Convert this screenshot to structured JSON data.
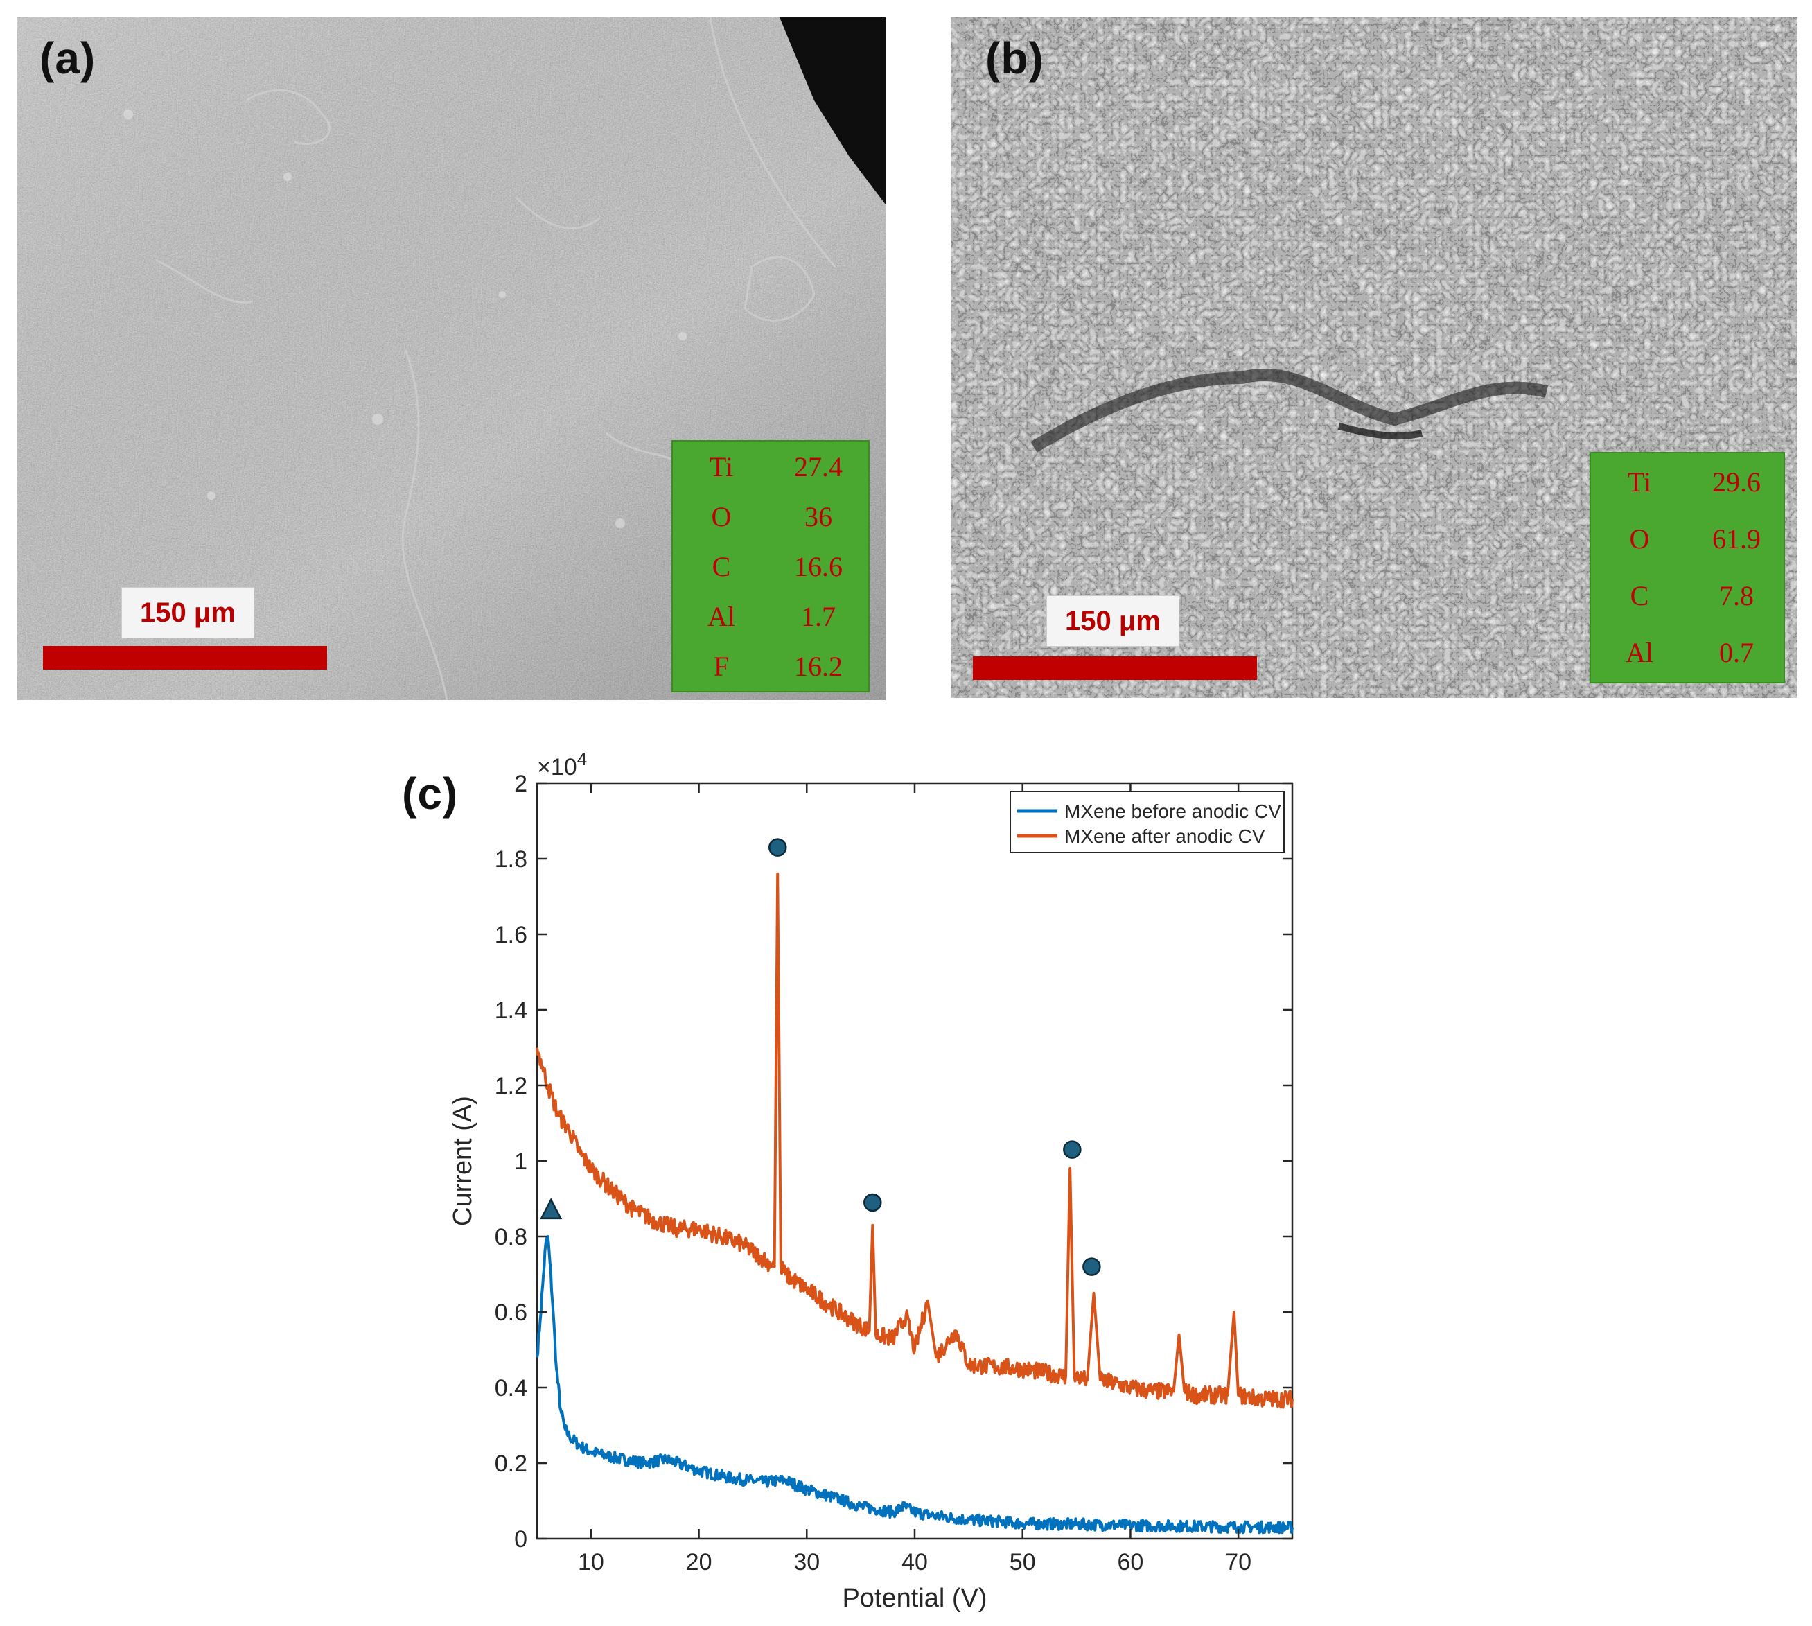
{
  "panels": {
    "a": {
      "label": "(a)",
      "scale_text": "150 μm",
      "eds": [
        {
          "element": "Ti",
          "value": "27.4"
        },
        {
          "element": "O",
          "value": "36"
        },
        {
          "element": "C",
          "value": "16.6"
        },
        {
          "element": "Al",
          "value": "1.7"
        },
        {
          "element": "F",
          "value": "16.2"
        }
      ]
    },
    "b": {
      "label": "(b)",
      "scale_text": "150 μm",
      "eds": [
        {
          "element": "Ti",
          "value": "29.6"
        },
        {
          "element": "O",
          "value": "61.9"
        },
        {
          "element": "C",
          "value": "7.8"
        },
        {
          "element": "Al",
          "value": "0.7"
        }
      ]
    },
    "c": {
      "label": "(c)"
    }
  },
  "colors": {
    "before": "#0072bd",
    "after": "#d95319",
    "marker": "#1f5f7f",
    "eds_bg": "#4aa830",
    "eds_text": "#c00000",
    "scale_bar": "#c00000"
  },
  "chart_data": {
    "type": "line",
    "title": "",
    "xlabel": "Potential (V)",
    "ylabel": "Current (A)",
    "y_exponent_label": "×10^4",
    "xlim": [
      5,
      75
    ],
    "ylim": [
      0,
      2
    ],
    "xticks": [
      10,
      20,
      30,
      40,
      50,
      60,
      70
    ],
    "yticks": [
      0,
      0.2,
      0.4,
      0.6,
      0.8,
      1,
      1.2,
      1.4,
      1.6,
      1.8,
      2
    ],
    "ytick_labels": [
      "0",
      "0.2",
      "0.4",
      "0.6",
      "0.8",
      "1",
      "1.2",
      "1.4",
      "1.6",
      "1.8",
      "2"
    ],
    "grid": false,
    "legend_position": "top-right",
    "series": [
      {
        "name": "MXene before anodic CV",
        "color": "#0072bd",
        "x": [
          5,
          5.3,
          5.6,
          5.8,
          6,
          6.2,
          6.5,
          6.8,
          7.2,
          7.6,
          8,
          9,
          10,
          12,
          15,
          17,
          20,
          23,
          26,
          28,
          30,
          33,
          35,
          37,
          38,
          39,
          40,
          42,
          45,
          48,
          50,
          55,
          60,
          65,
          70,
          75
        ],
        "values": [
          0.48,
          0.58,
          0.7,
          0.78,
          0.8,
          0.73,
          0.6,
          0.45,
          0.34,
          0.29,
          0.27,
          0.245,
          0.23,
          0.215,
          0.2,
          0.21,
          0.18,
          0.16,
          0.15,
          0.155,
          0.13,
          0.105,
          0.085,
          0.075,
          0.07,
          0.085,
          0.07,
          0.06,
          0.05,
          0.045,
          0.04,
          0.038,
          0.035,
          0.033,
          0.031,
          0.03
        ]
      },
      {
        "name": "MXene after anodic CV",
        "color": "#d95319",
        "x": [
          5,
          5.5,
          6,
          6.5,
          7,
          8,
          9,
          10,
          11,
          12,
          14,
          16,
          18,
          20,
          22,
          24,
          26,
          27,
          27.3,
          27.6,
          28,
          30,
          32,
          34,
          35.8,
          36.1,
          36.4,
          38,
          39.2,
          40,
          41.2,
          42,
          43.8,
          45,
          50,
          52,
          54,
          54.4,
          54.8,
          56,
          56.6,
          57.2,
          60,
          62,
          64,
          64.5,
          65,
          66,
          68,
          69,
          69.6,
          70,
          72,
          75
        ],
        "values": [
          1.3,
          1.25,
          1.2,
          1.16,
          1.12,
          1.08,
          1.02,
          0.98,
          0.95,
          0.92,
          0.87,
          0.84,
          0.82,
          0.82,
          0.8,
          0.78,
          0.74,
          0.72,
          1.76,
          0.72,
          0.7,
          0.66,
          0.62,
          0.58,
          0.55,
          0.83,
          0.54,
          0.53,
          0.59,
          0.5,
          0.63,
          0.48,
          0.55,
          0.46,
          0.45,
          0.44,
          0.43,
          0.98,
          0.43,
          0.42,
          0.65,
          0.42,
          0.4,
          0.39,
          0.39,
          0.54,
          0.39,
          0.38,
          0.38,
          0.38,
          0.6,
          0.38,
          0.37,
          0.37
        ]
      }
    ],
    "markers": [
      {
        "shape": "triangle",
        "x": 6.3,
        "y": 0.87
      },
      {
        "shape": "circle",
        "x": 27.3,
        "y": 1.83
      },
      {
        "shape": "circle",
        "x": 36.1,
        "y": 0.89
      },
      {
        "shape": "circle",
        "x": 54.6,
        "y": 1.03
      },
      {
        "shape": "circle",
        "x": 56.4,
        "y": 0.72
      }
    ]
  }
}
